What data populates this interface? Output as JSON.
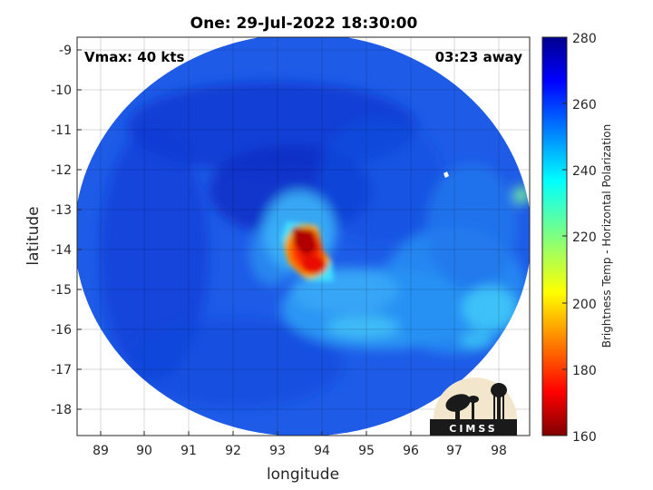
{
  "title": "One: 29-Jul-2022 18:30:00",
  "vmax_label": "Vmax: 40 kts",
  "time_away": "03:23 away",
  "logo_text": "CIMSS",
  "colorbar": {
    "label": "Brightness Temp - Horizontal Polarization",
    "ticks": [
      "160",
      "180",
      "200",
      "220",
      "240",
      "260",
      "280"
    ],
    "range": [
      160,
      280
    ],
    "colormap": "jet"
  },
  "chart_data": {
    "type": "heatmap",
    "xlabel": "longitude",
    "ylabel": "latitude",
    "xlim": [
      88.5,
      98.7
    ],
    "ylim": [
      -18.65,
      -8.6
    ],
    "xticks": [
      "89",
      "90",
      "91",
      "92",
      "93",
      "94",
      "95",
      "96",
      "97",
      "98"
    ],
    "yticks": [
      "-9",
      "-10",
      "-11",
      "-12",
      "-13",
      "-14",
      "-15",
      "-16",
      "-17",
      "-18"
    ],
    "grid": true,
    "swath_center": {
      "lon": 93.6,
      "lat": -13.9
    },
    "cold_core": {
      "lon": 93.7,
      "lat": -14.0,
      "min_temp": 165
    },
    "background_temp": 262
  }
}
